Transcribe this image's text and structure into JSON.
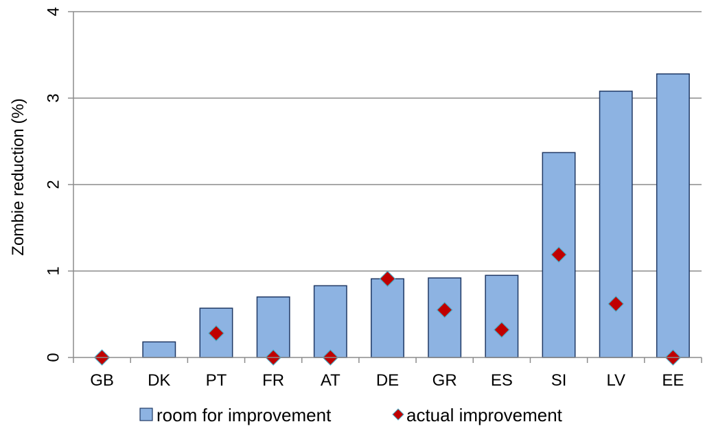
{
  "chart_data": {
    "type": "bar",
    "title": "",
    "xlabel": "",
    "ylabel": "Zombie reduction (%)",
    "ylim": [
      0,
      4
    ],
    "yticks": [
      0,
      1,
      2,
      3,
      4
    ],
    "grid": "horizontal",
    "legend_position": "bottom",
    "categories": [
      "GB",
      "DK",
      "PT",
      "FR",
      "AT",
      "DE",
      "GR",
      "ES",
      "SI",
      "LV",
      "EE"
    ],
    "series": [
      {
        "name": "room for improvement",
        "kind": "bar",
        "color": "#8DB3E2",
        "edge_color": "#1F3864",
        "values": [
          0.0,
          0.18,
          0.57,
          0.7,
          0.83,
          0.91,
          0.92,
          0.95,
          2.37,
          3.08,
          3.28
        ]
      },
      {
        "name": "actual improvement",
        "kind": "marker",
        "marker": "diamond",
        "color": "#C00000",
        "edge_color": "#4BACC6",
        "values": [
          0.0,
          null,
          0.28,
          0.0,
          0.0,
          0.91,
          0.55,
          0.32,
          1.19,
          0.62,
          0.0
        ]
      }
    ]
  }
}
